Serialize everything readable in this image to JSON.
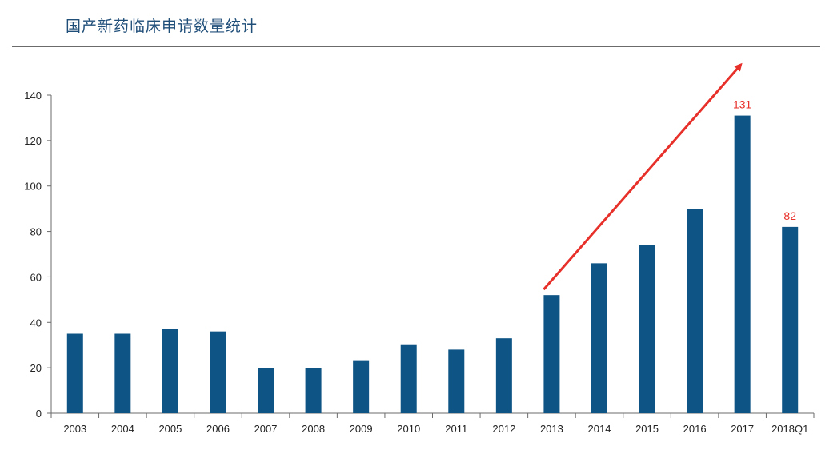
{
  "title": "国产新药临床申请数量统计",
  "chart_data": {
    "type": "bar",
    "title": "国产新药临床申请数量统计",
    "xlabel": "",
    "ylabel": "",
    "categories": [
      "2003",
      "2004",
      "2005",
      "2006",
      "2007",
      "2008",
      "2009",
      "2010",
      "2011",
      "2012",
      "2013",
      "2014",
      "2015",
      "2016",
      "2017",
      "2018Q1"
    ],
    "values": [
      35,
      35,
      37,
      36,
      20,
      20,
      23,
      30,
      28,
      33,
      52,
      66,
      74,
      90,
      131,
      82
    ],
    "ylim": [
      0,
      140
    ],
    "yticks": [
      0,
      20,
      40,
      60,
      80,
      100,
      120,
      140
    ],
    "data_labels": [
      {
        "category": "2017",
        "text": "131"
      },
      {
        "category": "2018Q1",
        "text": "82"
      }
    ],
    "grid": false,
    "bar_color": "#0e5485",
    "label_color": "#e8302a",
    "arrow_color": "#e8302a",
    "annotations": [
      {
        "type": "arrow",
        "from_category": "2013",
        "to_category": "2017",
        "direction": "up-right"
      }
    ]
  }
}
